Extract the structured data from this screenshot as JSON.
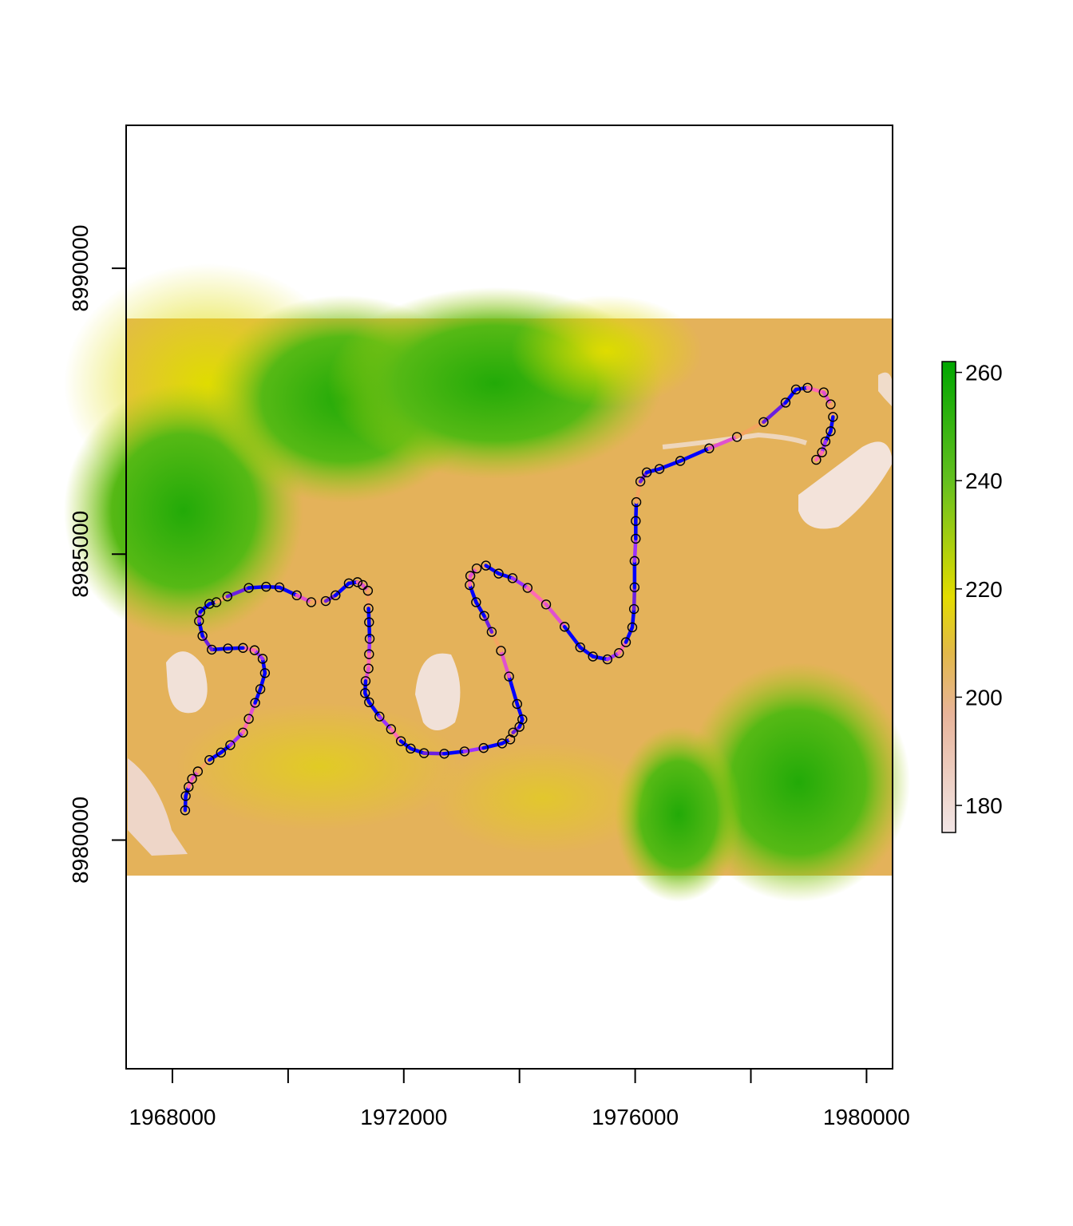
{
  "chart_data": {
    "type": "scatter",
    "title": "",
    "xlabel": "",
    "ylabel": "",
    "xlim": [
      1967200,
      1980450
    ],
    "ylim": [
      8976000,
      8992500
    ],
    "raster_extent": {
      "x": [
        1967200,
        1980450
      ],
      "y": [
        8979500,
        8989150
      ]
    },
    "x_ticks": [
      1968000,
      1970000,
      1972000,
      1974000,
      1976000,
      1978000,
      1980000
    ],
    "x_tick_labels": [
      "1968000",
      "",
      "1972000",
      "",
      "1976000",
      "",
      "1980000"
    ],
    "y_ticks": [
      8980000,
      8985000,
      8990000
    ],
    "y_tick_labels": [
      "8980000",
      "8985000",
      "8990000"
    ],
    "legend": {
      "position": "right",
      "range": [
        175,
        262
      ],
      "ticks": [
        180,
        200,
        220,
        240,
        260
      ],
      "tick_labels": [
        "180",
        "200",
        "220",
        "240",
        "260"
      ],
      "colors": [
        "#f2e6e6",
        "#e8b49a",
        "#e2b84a",
        "#e3dc00",
        "#63bf1f",
        "#00a600"
      ]
    },
    "path_colors": [
      "#0000ff",
      "#6a1fe0",
      "#9b30ff",
      "#e050d0",
      "#ff69b4",
      "#f4a460"
    ],
    "points": [
      [
        1968220,
        8980520
      ],
      [
        1968230,
        8980770
      ],
      [
        1968280,
        8980930
      ],
      [
        1968340,
        8981070
      ],
      [
        1968440,
        8981200
      ],
      [
        1968640,
        8981400
      ],
      [
        1968840,
        8981530
      ],
      [
        1969000,
        8981660
      ],
      [
        1969220,
        8981880
      ],
      [
        1969320,
        8982120
      ],
      [
        1969430,
        8982400
      ],
      [
        1969520,
        8982640
      ],
      [
        1969600,
        8982920
      ],
      [
        1969560,
        8983170
      ],
      [
        1969420,
        8983320
      ],
      [
        1969220,
        8983360
      ],
      [
        1968960,
        8983350
      ],
      [
        1968680,
        8983330
      ],
      [
        1968520,
        8983570
      ],
      [
        1968460,
        8983830
      ],
      [
        1968480,
        8983990
      ],
      [
        1968640,
        8984130
      ],
      [
        1968760,
        8984160
      ],
      [
        1968950,
        8984260
      ],
      [
        1969320,
        8984410
      ],
      [
        1969620,
        8984430
      ],
      [
        1969850,
        8984420
      ],
      [
        1970150,
        8984280
      ],
      [
        1970400,
        8984160
      ],
      [
        1970650,
        8984180
      ],
      [
        1970820,
        8984280
      ],
      [
        1971050,
        8984490
      ],
      [
        1971200,
        8984510
      ],
      [
        1971290,
        8984460
      ],
      [
        1971380,
        8984360
      ],
      [
        1971390,
        8984050
      ],
      [
        1971400,
        8983810
      ],
      [
        1971410,
        8983520
      ],
      [
        1971400,
        8983250
      ],
      [
        1971390,
        8983000
      ],
      [
        1971340,
        8982780
      ],
      [
        1971330,
        8982570
      ],
      [
        1971400,
        8982410
      ],
      [
        1971580,
        8982160
      ],
      [
        1971780,
        8981940
      ],
      [
        1971950,
        8981730
      ],
      [
        1972120,
        8981600
      ],
      [
        1972350,
        8981520
      ],
      [
        1972700,
        8981510
      ],
      [
        1973050,
        8981550
      ],
      [
        1973380,
        8981610
      ],
      [
        1973700,
        8981690
      ],
      [
        1973840,
        8981760
      ],
      [
        1973890,
        8981880
      ],
      [
        1974000,
        8981980
      ],
      [
        1974050,
        8982110
      ],
      [
        1973960,
        8982380
      ],
      [
        1973820,
        8982860
      ],
      [
        1973680,
        8983310
      ],
      [
        1973520,
        8983640
      ],
      [
        1973390,
        8983920
      ],
      [
        1973250,
        8984160
      ],
      [
        1973140,
        8984460
      ],
      [
        1973150,
        8984620
      ],
      [
        1973260,
        8984750
      ],
      [
        1973420,
        8984800
      ],
      [
        1973640,
        8984660
      ],
      [
        1973880,
        8984580
      ],
      [
        1974140,
        8984410
      ],
      [
        1974460,
        8984120
      ],
      [
        1974780,
        8983730
      ],
      [
        1975050,
        8983370
      ],
      [
        1975270,
        8983210
      ],
      [
        1975520,
        8983160
      ],
      [
        1975720,
        8983270
      ],
      [
        1975840,
        8983460
      ],
      [
        1975950,
        8983720
      ],
      [
        1975980,
        8984040
      ],
      [
        1975990,
        8984420
      ],
      [
        1975990,
        8984880
      ],
      [
        1976010,
        8985270
      ],
      [
        1976010,
        8985580
      ],
      [
        1976020,
        8985910
      ],
      [
        1976090,
        8986270
      ],
      [
        1976200,
        8986430
      ],
      [
        1976420,
        8986490
      ],
      [
        1976780,
        8986630
      ],
      [
        1977280,
        8986850
      ],
      [
        1977760,
        8987050
      ],
      [
        1978220,
        8987310
      ],
      [
        1978600,
        8987650
      ],
      [
        1978780,
        8987880
      ],
      [
        1978980,
        8987910
      ],
      [
        1979260,
        8987830
      ],
      [
        1979380,
        8987620
      ],
      [
        1979420,
        8987400
      ],
      [
        1979380,
        8987150
      ],
      [
        1979290,
        8986970
      ],
      [
        1979230,
        8986780
      ],
      [
        1979130,
        8986650
      ]
    ]
  }
}
